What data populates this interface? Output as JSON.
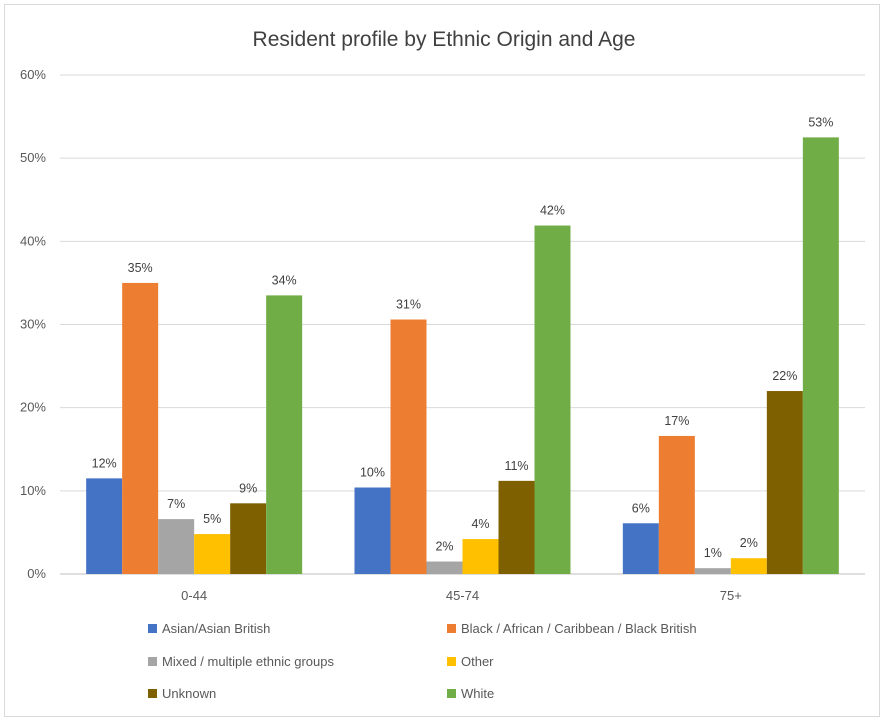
{
  "chart_data": {
    "type": "bar",
    "title": "Resident profile by Ethnic Origin and Age",
    "xlabel": "",
    "ylabel": "",
    "ylim": [
      0,
      60
    ],
    "yticks": [
      "0%",
      "10%",
      "20%",
      "30%",
      "40%",
      "50%",
      "60%"
    ],
    "grid": true,
    "legend_position": "bottom",
    "categories": [
      "0-44",
      "45-74",
      "75+"
    ],
    "series": [
      {
        "name": "Asian/Asian British",
        "color": "#4472c4",
        "values": [
          11.5,
          10.4,
          6.1
        ],
        "labels": [
          "12%",
          "10%",
          "6%"
        ]
      },
      {
        "name": "Black / African / Caribbean / Black British",
        "color": "#ed7d31",
        "values": [
          35.0,
          30.6,
          16.6
        ],
        "labels": [
          "35%",
          "31%",
          "17%"
        ]
      },
      {
        "name": "Mixed / multiple ethnic groups",
        "color": "#a5a5a5",
        "values": [
          6.6,
          1.5,
          0.7
        ],
        "labels": [
          "7%",
          "2%",
          "1%"
        ]
      },
      {
        "name": "Other",
        "color": "#ffc000",
        "values": [
          4.8,
          4.2,
          1.9
        ],
        "labels": [
          "5%",
          "4%",
          "2%"
        ]
      },
      {
        "name": "Unknown",
        "color": "#7f6000",
        "values": [
          8.5,
          11.2,
          22.0
        ],
        "labels": [
          "9%",
          "11%",
          "22%"
        ]
      },
      {
        "name": "White",
        "color": "#70ad47",
        "values": [
          33.5,
          41.9,
          52.5
        ],
        "labels": [
          "34%",
          "42%",
          "53%"
        ]
      }
    ]
  }
}
